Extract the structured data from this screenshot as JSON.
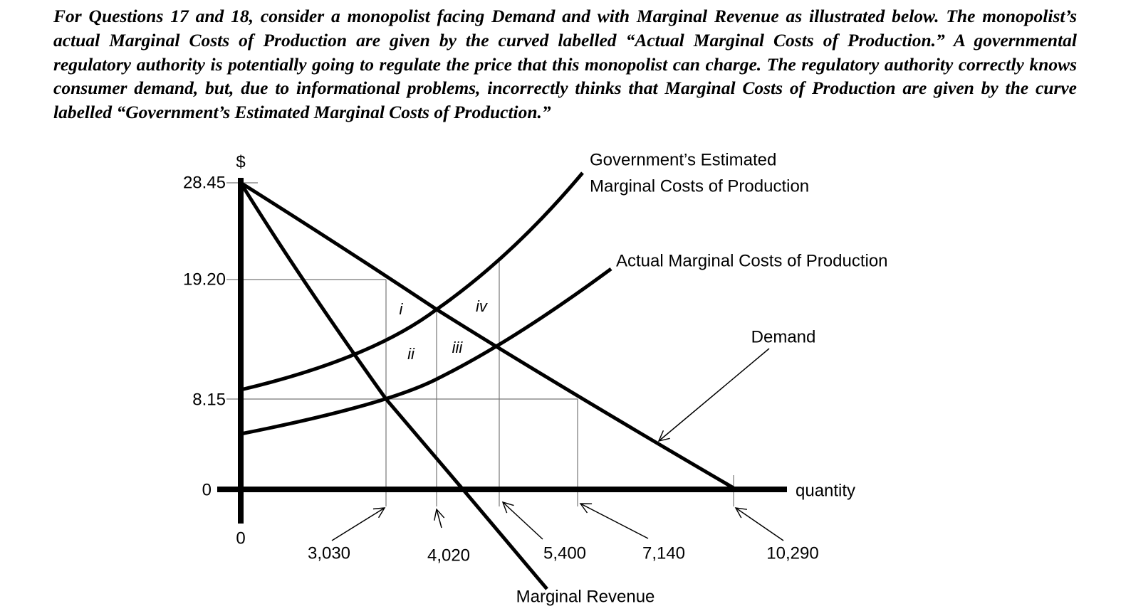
{
  "paragraph": "For Questions 17 and 18, consider a monopolist facing Demand and with Marginal Revenue as illustrated below.  The monopolist’s actual Marginal Costs of Production are given by the curved labelled “Actual Marginal Costs of Production.”  A governmental regulatory authority is potentially going to regulate the price that this monopolist can charge.  The regulatory authority correctly knows consumer demand, but, due to informational problems, incorrectly thinks that Marginal Costs of Production are given by the curve labelled “Government’s Estimated Marginal Costs of Production.”",
  "diagram": {
    "y_axis_label": "$",
    "x_axis_label": "quantity",
    "origin_label": "0",
    "y_ticks": [
      "28.45",
      "19.20",
      "8.15",
      "0"
    ],
    "x_ticks": [
      "3,030",
      "4,020",
      "5,400",
      "7,140",
      "10,290"
    ],
    "curves": {
      "government_mc": [
        "Government’s Estimated",
        "Marginal Costs of Production"
      ],
      "actual_mc": "Actual Marginal Costs of Production",
      "demand": "Demand",
      "marginal_revenue": "Marginal Revenue"
    },
    "regions": [
      "i",
      "ii",
      "iii",
      "iv"
    ]
  }
}
